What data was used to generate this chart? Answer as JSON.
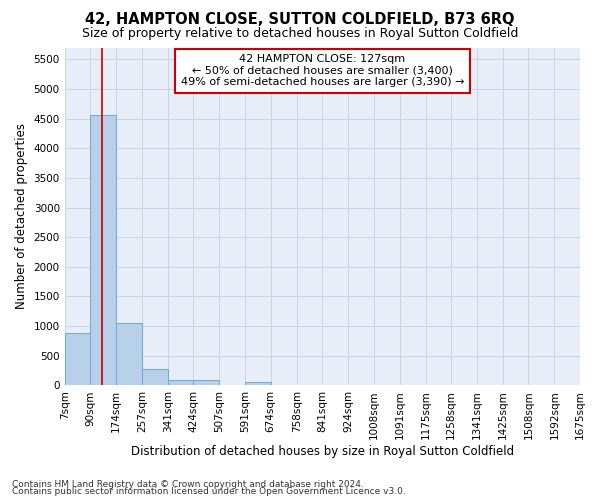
{
  "title": "42, HAMPTON CLOSE, SUTTON COLDFIELD, B73 6RQ",
  "subtitle": "Size of property relative to detached houses in Royal Sutton Coldfield",
  "xlabel": "Distribution of detached houses by size in Royal Sutton Coldfield",
  "ylabel": "Number of detached properties",
  "footnote1": "Contains HM Land Registry data © Crown copyright and database right 2024.",
  "footnote2": "Contains public sector information licensed under the Open Government Licence v3.0.",
  "annotation_title": "42 HAMPTON CLOSE: 127sqm",
  "annotation_line1": "← 50% of detached houses are smaller (3,400)",
  "annotation_line2": "49% of semi-detached houses are larger (3,390) →",
  "bar_edges": [
    7,
    90,
    174,
    257,
    341,
    424,
    507,
    591,
    674,
    758,
    841,
    924,
    1008,
    1091,
    1175,
    1258,
    1341,
    1425,
    1508,
    1592,
    1675
  ],
  "bar_heights": [
    880,
    4560,
    1060,
    280,
    90,
    85,
    0,
    55,
    0,
    0,
    0,
    0,
    0,
    0,
    0,
    0,
    0,
    0,
    0,
    0
  ],
  "bar_color": "#b8d0ea",
  "bar_edge_color": "#6aaad4",
  "vline_color": "#cc0000",
  "vline_x": 127,
  "ylim": [
    0,
    5700
  ],
  "yticks": [
    0,
    500,
    1000,
    1500,
    2000,
    2500,
    3000,
    3500,
    4000,
    4500,
    5000,
    5500
  ],
  "grid_color": "#c8d4e8",
  "bg_color": "#e8eef8",
  "annotation_box_facecolor": "#ffffff",
  "annotation_box_edge": "#cc0000",
  "title_fontsize": 10.5,
  "subtitle_fontsize": 9,
  "axis_label_fontsize": 8.5,
  "tick_fontsize": 7.5,
  "annotation_fontsize": 8,
  "footnote_fontsize": 6.5
}
